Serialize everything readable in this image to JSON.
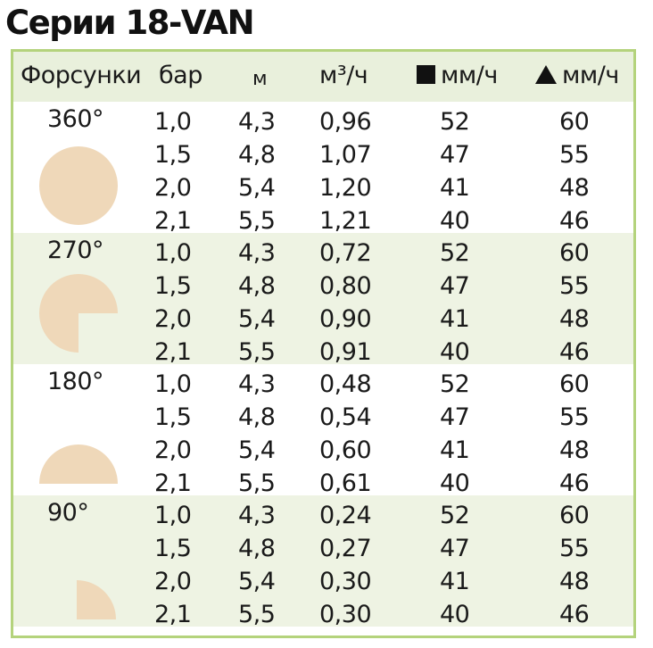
{
  "title": "Серии 18-VAN",
  "header": {
    "nozzles": "Форсунки",
    "bar": "бар",
    "m": "м",
    "flow": "м³/ч",
    "square_rate": "мм/ч",
    "triangle_rate": "мм/ч"
  },
  "colors": {
    "frame": "#b4d37c",
    "shade": "#eef3e3",
    "shape": "#efd8b9"
  },
  "groups": [
    {
      "arc": "360°",
      "shape_icon": "circle-icon",
      "rows": [
        {
          "bar": "1,0",
          "m": "4,3",
          "flow": "0,96",
          "sq": "52",
          "tri": "60"
        },
        {
          "bar": "1,5",
          "m": "4,8",
          "flow": "1,07",
          "sq": "47",
          "tri": "55"
        },
        {
          "bar": "2,0",
          "m": "5,4",
          "flow": "1,20",
          "sq": "41",
          "tri": "48"
        },
        {
          "bar": "2,1",
          "m": "5,5",
          "flow": "1,21",
          "sq": "40",
          "tri": "46"
        }
      ]
    },
    {
      "arc": "270°",
      "shape_icon": "three-quarter-circle-icon",
      "rows": [
        {
          "bar": "1,0",
          "m": "4,3",
          "flow": "0,72",
          "sq": "52",
          "tri": "60"
        },
        {
          "bar": "1,5",
          "m": "4,8",
          "flow": "0,80",
          "sq": "47",
          "tri": "55"
        },
        {
          "bar": "2,0",
          "m": "5,4",
          "flow": "0,90",
          "sq": "41",
          "tri": "48"
        },
        {
          "bar": "2,1",
          "m": "5,5",
          "flow": "0,91",
          "sq": "40",
          "tri": "46"
        }
      ]
    },
    {
      "arc": "180°",
      "shape_icon": "half-circle-icon",
      "rows": [
        {
          "bar": "1,0",
          "m": "4,3",
          "flow": "0,48",
          "sq": "52",
          "tri": "60"
        },
        {
          "bar": "1,5",
          "m": "4,8",
          "flow": "0,54",
          "sq": "47",
          "tri": "55"
        },
        {
          "bar": "2,0",
          "m": "5,4",
          "flow": "0,60",
          "sq": "41",
          "tri": "48"
        },
        {
          "bar": "2,1",
          "m": "5,5",
          "flow": "0,61",
          "sq": "40",
          "tri": "46"
        }
      ]
    },
    {
      "arc": "90°",
      "shape_icon": "quarter-circle-icon",
      "rows": [
        {
          "bar": "1,0",
          "m": "4,3",
          "flow": "0,24",
          "sq": "52",
          "tri": "60"
        },
        {
          "bar": "1,5",
          "m": "4,8",
          "flow": "0,27",
          "sq": "47",
          "tri": "55"
        },
        {
          "bar": "2,0",
          "m": "5,4",
          "flow": "0,30",
          "sq": "41",
          "tri": "48"
        },
        {
          "bar": "2,1",
          "m": "5,5",
          "flow": "0,30",
          "sq": "40",
          "tri": "46"
        }
      ]
    }
  ]
}
